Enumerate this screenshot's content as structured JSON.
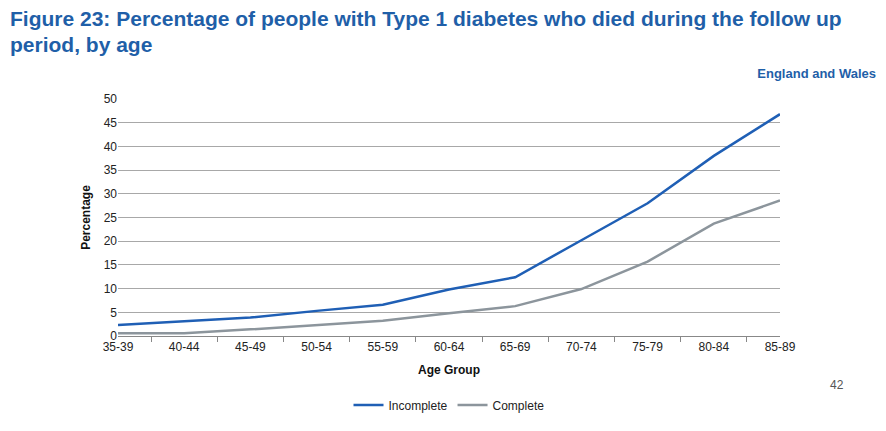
{
  "chart_data": {
    "type": "line",
    "title": "Figure 23: Percentage of people with Type 1 diabetes who died during the follow up period, by age",
    "subtitle": "England and Wales",
    "annotations": [
      "42"
    ],
    "x_label": "Age Group",
    "y_label": "Percentage",
    "categories": [
      "35-39",
      "40-44",
      "45-49",
      "50-54",
      "55-59",
      "60-64",
      "65-69",
      "70-74",
      "75-79",
      "80-84",
      "85-89"
    ],
    "series": [
      {
        "name": "Incomplete",
        "color": "#1f5fb5",
        "values": [
          2.3,
          3.1,
          3.9,
          5.3,
          6.6,
          9.8,
          12.4,
          20.2,
          28.0,
          38.0,
          46.8
        ]
      },
      {
        "name": "Complete",
        "color": "#8c959c",
        "values": [
          0.6,
          0.6,
          1.4,
          2.3,
          3.2,
          4.8,
          6.3,
          9.9,
          15.7,
          23.7,
          28.6
        ]
      }
    ],
    "ylim": [
      0,
      50
    ],
    "yticks": [
      0,
      5,
      10,
      15,
      20,
      25,
      30,
      35,
      40,
      45,
      50
    ],
    "grid": true,
    "legend": "bottom"
  }
}
